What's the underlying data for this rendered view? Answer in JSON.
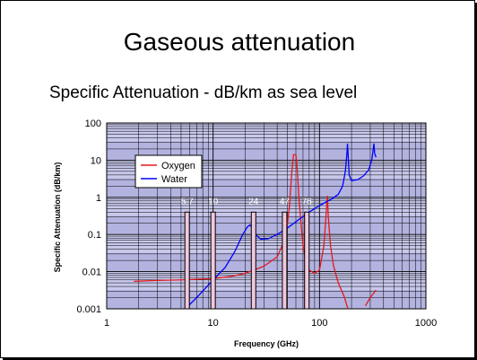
{
  "slide": {
    "title": "Gaseous attenuation",
    "subtitle": "Specific Attenuation - dB/km as sea level"
  },
  "chart_data": {
    "type": "line",
    "title": "",
    "xlabel": "Frequency (GHz)",
    "ylabel": "Specific Attenuation (dB/km)",
    "x_scale": "log",
    "y_scale": "log",
    "xlim": [
      1,
      1000
    ],
    "ylim": [
      0.001,
      100
    ],
    "x_ticks": [
      "1",
      "10",
      "100",
      "1000"
    ],
    "y_ticks": [
      "0.001",
      "0.01",
      "0.1",
      "1",
      "10",
      "100"
    ],
    "grid": true,
    "legend": "top-left",
    "series": [
      {
        "name": "Oxygen",
        "color": "#e41a1c",
        "points": [
          [
            1.8,
            0.0055
          ],
          [
            3,
            0.0058
          ],
          [
            5,
            0.006
          ],
          [
            10,
            0.0065
          ],
          [
            15,
            0.0075
          ],
          [
            20,
            0.009
          ],
          [
            30,
            0.014
          ],
          [
            40,
            0.025
          ],
          [
            48,
            0.08
          ],
          [
            52,
            0.5
          ],
          [
            55,
            5
          ],
          [
            57,
            14
          ],
          [
            60,
            14
          ],
          [
            62,
            5
          ],
          [
            64,
            1
          ],
          [
            67,
            0.2
          ],
          [
            70,
            0.05
          ],
          [
            75,
            0.018
          ],
          [
            80,
            0.011
          ],
          [
            90,
            0.009
          ],
          [
            100,
            0.011
          ],
          [
            110,
            0.05
          ],
          [
            115,
            0.3
          ],
          [
            118.7,
            1.1
          ],
          [
            121,
            0.3
          ],
          [
            127,
            0.05
          ],
          [
            135,
            0.015
          ],
          [
            150,
            0.005
          ],
          [
            170,
            0.0022
          ],
          [
            185,
            0.001
          ]
        ]
      },
      {
        "name": "Oxygen",
        "color": "#e41a1c",
        "points": [
          [
            270,
            0.0012
          ],
          [
            300,
            0.002
          ],
          [
            340,
            0.0032
          ]
        ]
      },
      {
        "name": "Water",
        "color": "#0000ff",
        "points": [
          [
            5.5,
            0.001
          ],
          [
            7,
            0.002
          ],
          [
            10,
            0.006
          ],
          [
            13,
            0.013
          ],
          [
            16,
            0.035
          ],
          [
            19,
            0.1
          ],
          [
            21,
            0.16
          ],
          [
            22.2,
            0.18
          ],
          [
            23.5,
            0.15
          ],
          [
            25,
            0.1
          ],
          [
            28,
            0.075
          ],
          [
            33,
            0.077
          ],
          [
            40,
            0.1
          ],
          [
            50,
            0.15
          ],
          [
            60,
            0.22
          ],
          [
            80,
            0.4
          ],
          [
            100,
            0.6
          ],
          [
            130,
            0.9
          ],
          [
            150,
            1.2
          ],
          [
            165,
            2
          ],
          [
            175,
            5
          ],
          [
            181,
            15
          ],
          [
            183.3,
            28
          ],
          [
            185.5,
            15
          ],
          [
            190,
            4
          ],
          [
            200,
            2.8
          ],
          [
            230,
            3
          ],
          [
            260,
            3.8
          ],
          [
            290,
            5.5
          ],
          [
            310,
            10
          ],
          [
            320,
            20
          ],
          [
            325,
            28
          ],
          [
            330,
            15
          ],
          [
            340,
            12
          ]
        ]
      }
    ],
    "markers": [
      {
        "label": "5.7",
        "x": 5.7,
        "top": 0.4
      },
      {
        "label": "10",
        "x": 10,
        "top": 0.4
      },
      {
        "label": "24",
        "x": 24,
        "top": 0.4
      },
      {
        "label": "47",
        "x": 47,
        "top": 0.4
      },
      {
        "label": "76",
        "x": 76,
        "top": 0.4
      }
    ]
  }
}
